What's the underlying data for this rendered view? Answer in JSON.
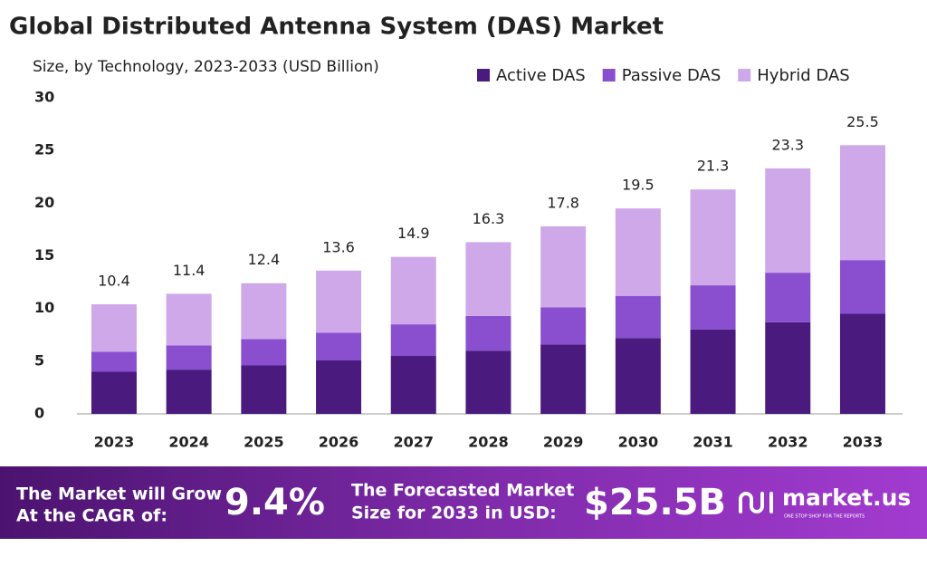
{
  "chart_data": {
    "type": "stacked_bar",
    "title": "Global Distributed Antenna System (DAS) Market",
    "subtitle": "Size, by Technology, 2023-2033 (USD Billion)",
    "categories": [
      "2023",
      "2024",
      "2025",
      "2026",
      "2027",
      "2028",
      "2029",
      "2030",
      "2031",
      "2032",
      "2033"
    ],
    "series": [
      {
        "name": "Active DAS",
        "color": "#4a1a7f",
        "values": [
          4.0,
          4.2,
          4.6,
          5.1,
          5.5,
          6.0,
          6.6,
          7.2,
          8.0,
          8.7,
          9.5
        ]
      },
      {
        "name": "Passive DAS",
        "color": "#8a4fcf",
        "values": [
          1.9,
          2.3,
          2.5,
          2.6,
          3.0,
          3.3,
          3.5,
          4.0,
          4.2,
          4.7,
          5.1
        ]
      },
      {
        "name": "Hybrid DAS",
        "color": "#cfa8ea",
        "values": [
          4.5,
          4.9,
          5.3,
          5.9,
          6.4,
          7.0,
          7.7,
          8.3,
          9.1,
          9.9,
          10.9
        ]
      }
    ],
    "totals": [
      10.4,
      11.4,
      12.4,
      13.6,
      14.9,
      16.3,
      17.8,
      19.5,
      21.3,
      23.3,
      25.5
    ],
    "ylim": [
      0,
      30
    ],
    "yticks": [
      0,
      5,
      10,
      15,
      20,
      25,
      30
    ],
    "grid": false,
    "legend": "top-right"
  },
  "banner": {
    "cagr_text": [
      "The Market will Grow",
      "At the CAGR of:"
    ],
    "cagr_value": "9.4%",
    "forecast_text": [
      "The Forecasted Market",
      "Size for 2033 in USD:"
    ],
    "forecast_value": "$25.5B",
    "brand": "market.us",
    "tagline": "ONE STOP SHOP FOR THE REPORTS"
  }
}
